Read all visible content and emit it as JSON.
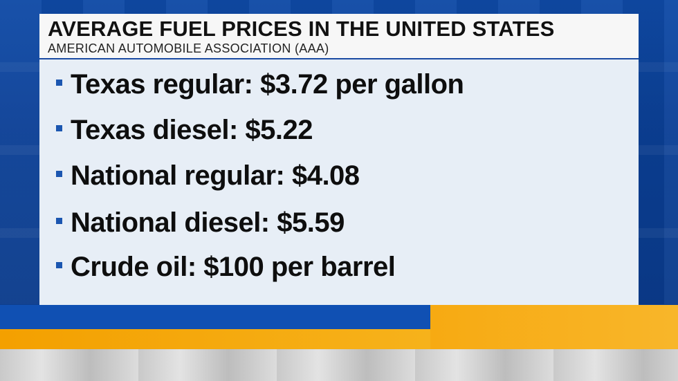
{
  "header": {
    "title": "AVERAGE FUEL PRICES IN THE UNITED STATES",
    "subtitle": "AMERICAN AUTOMOBILE ASSOCIATION (AAA)"
  },
  "items": [
    "Texas regular: $3.72 per gallon",
    "Texas diesel: $5.22",
    "National regular: $4.08",
    "National diesel: $5.59",
    "Crude oil: $100 per barrel"
  ],
  "colors": {
    "background_blue": "#0b3f95",
    "panel": "#e7eef6",
    "bullet": "#1b56b0",
    "accent_gold": "#f6b21b"
  }
}
